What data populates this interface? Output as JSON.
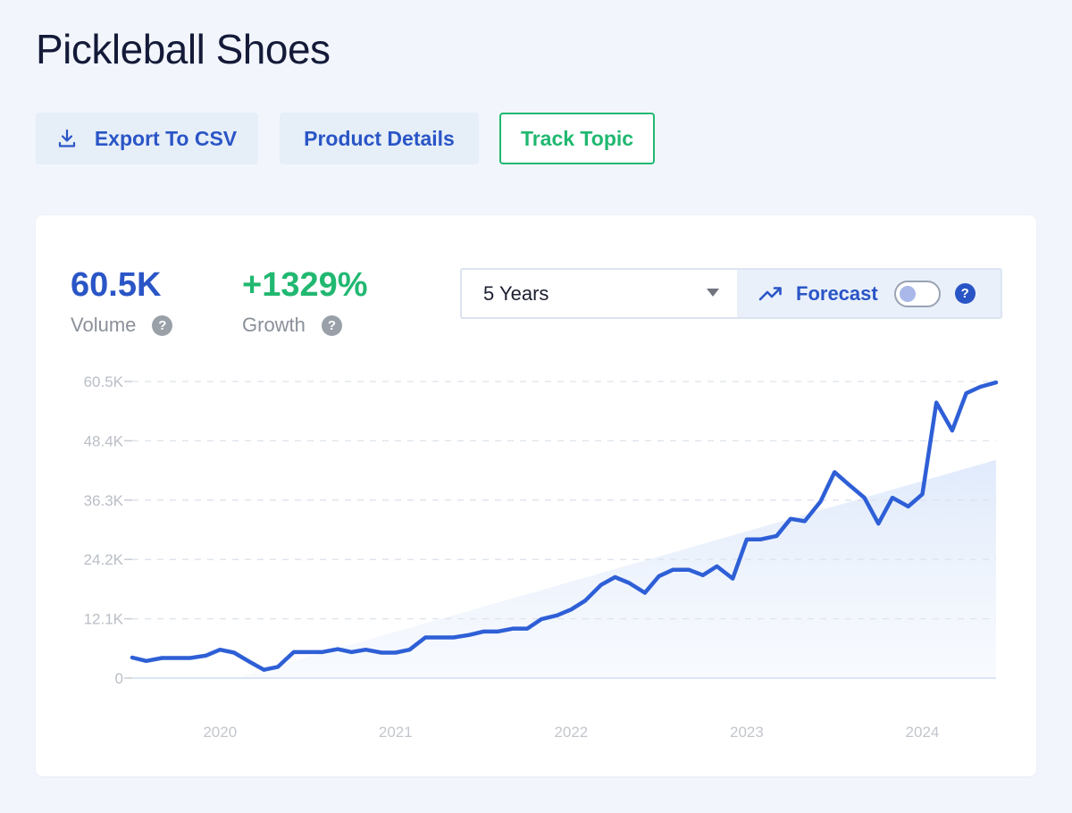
{
  "page": {
    "title": "Pickleball Shoes"
  },
  "toolbar": {
    "export_label": "Export To CSV",
    "details_label": "Product Details",
    "track_label": "Track Topic"
  },
  "metrics": {
    "volume_value": "60.5K",
    "volume_label": "Volume",
    "growth_value": "+1329%",
    "growth_label": "Growth",
    "help_glyph": "?"
  },
  "controls": {
    "range_selected": "5 Years",
    "forecast_label": "Forecast",
    "forecast_enabled": false
  },
  "colors": {
    "accent": "#2a55c6",
    "growth": "#21b871",
    "line": "#2e5fd6",
    "trend_fill": "#e8f0fc"
  },
  "icons": {
    "export": "download-icon",
    "forecast": "trending-up-icon",
    "dropdown": "caret-down-icon",
    "help": "help-circle-icon"
  },
  "chart_data": {
    "type": "line",
    "title": "",
    "xlabel": "",
    "ylabel": "",
    "ylim": [
      0,
      60500
    ],
    "yticks": [
      0,
      12100,
      24200,
      36300,
      48400,
      60500
    ],
    "ytick_labels": [
      "0",
      "12.1K",
      "24.2K",
      "36.3K",
      "48.4K",
      "60.5K"
    ],
    "xticks": [
      2020,
      2021,
      2022,
      2023,
      2024
    ],
    "xtick_labels": [
      "2020",
      "2021",
      "2022",
      "2023",
      "2024"
    ],
    "xlim": [
      2019.5,
      2024.42
    ],
    "grid": true,
    "series": [
      {
        "values": [
          [
            2019.5,
            4200
          ],
          [
            2019.58,
            3500
          ],
          [
            2019.67,
            4100
          ],
          [
            2019.75,
            4100
          ],
          [
            2019.83,
            4100
          ],
          [
            2019.92,
            4600
          ],
          [
            2020.0,
            5800
          ],
          [
            2020.08,
            5200
          ],
          [
            2020.17,
            3300
          ],
          [
            2020.25,
            1700
          ],
          [
            2020.33,
            2300
          ],
          [
            2020.42,
            5300
          ],
          [
            2020.5,
            5300
          ],
          [
            2020.58,
            5300
          ],
          [
            2020.67,
            5900
          ],
          [
            2020.75,
            5300
          ],
          [
            2020.83,
            5800
          ],
          [
            2020.92,
            5200
          ],
          [
            2021.0,
            5200
          ],
          [
            2021.08,
            5800
          ],
          [
            2021.17,
            8300
          ],
          [
            2021.25,
            8300
          ],
          [
            2021.33,
            8300
          ],
          [
            2021.42,
            8800
          ],
          [
            2021.5,
            9500
          ],
          [
            2021.58,
            9500
          ],
          [
            2021.67,
            10100
          ],
          [
            2021.75,
            10100
          ],
          [
            2021.83,
            12000
          ],
          [
            2021.92,
            12800
          ],
          [
            2022.0,
            14000
          ],
          [
            2022.08,
            15800
          ],
          [
            2022.17,
            19000
          ],
          [
            2022.25,
            20600
          ],
          [
            2022.33,
            19400
          ],
          [
            2022.42,
            17400
          ],
          [
            2022.5,
            20800
          ],
          [
            2022.58,
            22100
          ],
          [
            2022.67,
            22100
          ],
          [
            2022.75,
            21000
          ],
          [
            2022.83,
            22800
          ],
          [
            2022.92,
            20300
          ],
          [
            2023.0,
            28300
          ],
          [
            2023.08,
            28300
          ],
          [
            2023.17,
            29000
          ],
          [
            2023.25,
            32500
          ],
          [
            2023.33,
            32000
          ],
          [
            2023.42,
            36000
          ],
          [
            2023.5,
            42000
          ],
          [
            2023.58,
            39500
          ],
          [
            2023.67,
            36800
          ],
          [
            2023.75,
            31500
          ],
          [
            2023.83,
            36800
          ],
          [
            2023.92,
            35000
          ],
          [
            2024.0,
            37500
          ],
          [
            2024.08,
            56200
          ],
          [
            2024.17,
            50500
          ],
          [
            2024.25,
            58100
          ],
          [
            2024.33,
            59400
          ],
          [
            2024.42,
            60300
          ]
        ]
      }
    ],
    "trend_area": [
      [
        2020.08,
        0
      ],
      [
        2024.42,
        44500
      ],
      [
        2024.42,
        0
      ]
    ]
  }
}
